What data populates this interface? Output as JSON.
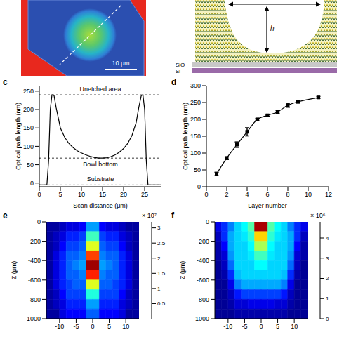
{
  "image_a": {
    "scale_bar": "10 μm"
  },
  "diagram_b": {
    "height_label": "h",
    "layers": [
      "SiO",
      "Si"
    ]
  },
  "chart_data": [
    {
      "panel": "c",
      "type": "line",
      "x_label": "Scan distance (μm)",
      "y_label": "Optical path length (nm)",
      "x": [
        0,
        1,
        1.8,
        2.2,
        2.6,
        3,
        3.5,
        4,
        5,
        6,
        7,
        8,
        9,
        10,
        11,
        12,
        13,
        14,
        15,
        16,
        17,
        18,
        19,
        20,
        21,
        22,
        23,
        23.6,
        24.2,
        24.6,
        25,
        25.4,
        25.8,
        27,
        29
      ],
      "values": [
        -5,
        -5,
        -5,
        60,
        200,
        240,
        238,
        205,
        150,
        125,
        108,
        97,
        88,
        82,
        77,
        73,
        70,
        68,
        68,
        69,
        72,
        77,
        84,
        94,
        108,
        130,
        165,
        205,
        238,
        240,
        200,
        60,
        -5,
        -5,
        -5
      ],
      "color": "#000000",
      "xlim": [
        0,
        29
      ],
      "xticks": [
        0,
        5,
        10,
        15,
        20,
        25
      ],
      "ylim": [
        -10,
        265
      ],
      "yticks": [
        0,
        50,
        100,
        150,
        200,
        250
      ],
      "annotations": [
        {
          "text": "Unetched area",
          "y": 240
        },
        {
          "text": "Bowl bottom",
          "y": 68
        },
        {
          "text": "Substrate",
          "y": -5
        }
      ]
    },
    {
      "panel": "d",
      "type": "line",
      "x_label": "Layer number",
      "y_label": "Optical path length (nm)",
      "x": [
        1,
        2,
        3,
        4,
        5,
        6,
        7,
        8,
        9,
        11
      ],
      "values": [
        38,
        85,
        125,
        163,
        200,
        212,
        222,
        242,
        252,
        265
      ],
      "errors": [
        5,
        4,
        8,
        12,
        3,
        3,
        4,
        6,
        3,
        3
      ],
      "color": "#000000",
      "marker": "square",
      "xlim": [
        0,
        12
      ],
      "xticks": [
        0,
        2,
        4,
        6,
        8,
        10,
        12
      ],
      "ylim": [
        0,
        300
      ],
      "yticks": [
        0,
        50,
        100,
        150,
        200,
        250,
        300
      ]
    },
    {
      "panel": "e",
      "type": "heatmap",
      "y_label": "Z (μm)",
      "x": [
        -13,
        -11,
        -9,
        -7,
        -5,
        -3,
        -1,
        1,
        3,
        5,
        7,
        9,
        11,
        13
      ],
      "y": [
        -50,
        -150,
        -250,
        -350,
        -450,
        -550,
        -650,
        -750,
        -850,
        -950
      ],
      "cells": [
        [
          0.1,
          0.1,
          0.2,
          0.3,
          0.3,
          0.4,
          0.9,
          0.9,
          0.4,
          0.3,
          0.3,
          0.2,
          0.1,
          0.1
        ],
        [
          0.1,
          0.2,
          0.3,
          0.5,
          0.5,
          0.6,
          1.4,
          1.4,
          0.6,
          0.5,
          0.5,
          0.3,
          0.2,
          0.1
        ],
        [
          0.1,
          0.2,
          0.4,
          0.6,
          0.6,
          0.7,
          1.9,
          1.9,
          0.7,
          0.6,
          0.6,
          0.4,
          0.2,
          0.1
        ],
        [
          0.1,
          0.3,
          0.5,
          0.7,
          0.7,
          0.8,
          2.6,
          2.6,
          0.8,
          0.7,
          0.7,
          0.5,
          0.3,
          0.1
        ],
        [
          0.1,
          0.3,
          0.5,
          0.7,
          0.8,
          0.9,
          3.1,
          3.1,
          0.9,
          0.8,
          0.7,
          0.5,
          0.3,
          0.1
        ],
        [
          0.1,
          0.3,
          0.5,
          0.7,
          0.7,
          0.8,
          2.7,
          2.7,
          0.8,
          0.7,
          0.7,
          0.5,
          0.3,
          0.1
        ],
        [
          0.1,
          0.3,
          0.5,
          0.6,
          0.7,
          0.7,
          1.9,
          1.9,
          0.7,
          0.7,
          0.6,
          0.5,
          0.3,
          0.1
        ],
        [
          0.1,
          0.2,
          0.4,
          0.6,
          0.6,
          0.6,
          1.3,
          1.3,
          0.6,
          0.6,
          0.6,
          0.4,
          0.2,
          0.1
        ],
        [
          0.1,
          0.2,
          0.3,
          0.5,
          0.5,
          0.5,
          0.9,
          0.9,
          0.5,
          0.5,
          0.5,
          0.3,
          0.2,
          0.1
        ],
        [
          0.1,
          0.1,
          0.3,
          0.4,
          0.4,
          0.4,
          0.7,
          0.7,
          0.4,
          0.4,
          0.4,
          0.3,
          0.1,
          0.1
        ]
      ],
      "xlim": [
        -14,
        14
      ],
      "xticks": [
        -10,
        -5,
        0,
        5,
        10
      ],
      "ylim": [
        -1000,
        0
      ],
      "yticks": [
        -1000,
        -800,
        -600,
        -400,
        -200,
        0
      ],
      "colorbar": {
        "range": [
          0,
          3.2
        ],
        "ticks": [
          0.5,
          1,
          1.5,
          2,
          2.5,
          3
        ],
        "label": "× 10⁷"
      }
    },
    {
      "panel": "f",
      "type": "heatmap",
      "y_label": "Z (μm)",
      "x": [
        -13,
        -11,
        -9,
        -7,
        -5,
        -3,
        -1,
        1,
        3,
        5,
        7,
        9,
        11,
        13
      ],
      "y": [
        -50,
        -150,
        -250,
        -350,
        -450,
        -550,
        -650,
        -750,
        -850,
        -950
      ],
      "cells": [
        [
          0.5,
          0.8,
          1.2,
          1.6,
          1.8,
          2.2,
          4.6,
          4.6,
          2.2,
          1.8,
          1.6,
          1.2,
          0.8,
          0.5
        ],
        [
          0.3,
          0.8,
          1.4,
          1.6,
          1.7,
          2.0,
          3.2,
          3.2,
          2.0,
          1.7,
          1.6,
          1.4,
          0.8,
          0.3
        ],
        [
          0.2,
          0.6,
          1.4,
          1.6,
          1.6,
          1.8,
          2.6,
          2.6,
          1.8,
          1.6,
          1.6,
          1.4,
          0.6,
          0.2
        ],
        [
          0.2,
          0.4,
          1.3,
          1.6,
          1.6,
          1.7,
          2.1,
          2.1,
          1.7,
          1.6,
          1.6,
          1.3,
          0.4,
          0.2
        ],
        [
          0.1,
          0.3,
          1.1,
          1.6,
          1.6,
          1.6,
          1.8,
          1.8,
          1.6,
          1.6,
          1.6,
          1.1,
          0.3,
          0.1
        ],
        [
          0.1,
          0.2,
          0.8,
          1.5,
          1.6,
          1.6,
          1.6,
          1.6,
          1.6,
          1.6,
          1.5,
          0.8,
          0.2,
          0.1
        ],
        [
          0.1,
          0.1,
          0.5,
          1.2,
          1.4,
          1.4,
          1.4,
          1.4,
          1.4,
          1.4,
          1.2,
          0.5,
          0.1,
          0.1
        ],
        [
          0.1,
          0.1,
          0.3,
          0.7,
          0.9,
          0.9,
          0.9,
          0.9,
          0.9,
          0.9,
          0.7,
          0.3,
          0.1,
          0.1
        ],
        [
          0.1,
          0.1,
          0.2,
          0.4,
          0.4,
          0.5,
          0.5,
          0.5,
          0.5,
          0.4,
          0.4,
          0.2,
          0.1,
          0.1
        ],
        [
          0.1,
          0.1,
          0.1,
          0.2,
          0.2,
          0.2,
          0.2,
          0.2,
          0.2,
          0.2,
          0.2,
          0.1,
          0.1,
          0.1
        ]
      ],
      "xlim": [
        -14,
        14
      ],
      "xticks": [
        -10,
        -5,
        0,
        5,
        10
      ],
      "ylim": [
        -1000,
        0
      ],
      "yticks": [
        -1000,
        -800,
        -600,
        -400,
        -200,
        0
      ],
      "colorbar": {
        "range": [
          0,
          4.8
        ],
        "ticks": [
          0,
          1,
          2,
          3,
          4
        ],
        "label": "× 10⁶"
      }
    }
  ]
}
